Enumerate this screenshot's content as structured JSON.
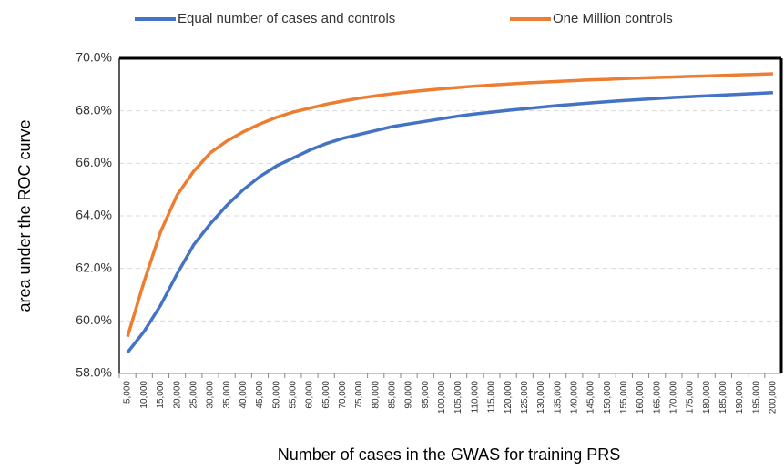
{
  "chart_data": {
    "type": "line",
    "x_label": "Number of cases in the GWAS for training PRS",
    "y_label": "area under the ROC curve",
    "categories": [
      "5,000",
      "10,000",
      "15,000",
      "20,000",
      "25,000",
      "30,000",
      "35,000",
      "40,000",
      "45,000",
      "50,000",
      "55,000",
      "60,000",
      "65,000",
      "70,000",
      "75,000",
      "80,000",
      "85,000",
      "90,000",
      "95,000",
      "100,000",
      "105,000",
      "110,000",
      "115,000",
      "120,000",
      "125,000",
      "130,000",
      "135,000",
      "140,000",
      "145,000",
      "150,000",
      "155,000",
      "160,000",
      "165,000",
      "170,000",
      "175,000",
      "180,000",
      "185,000",
      "190,000",
      "195,000",
      "200,000"
    ],
    "series": [
      {
        "name": "Equal number of cases and controls",
        "color": "#4472c4",
        "values": [
          58.8,
          59.6,
          60.6,
          61.8,
          62.9,
          63.7,
          64.4,
          65.0,
          65.5,
          65.9,
          66.2,
          66.5,
          66.75,
          66.95,
          67.1,
          67.25,
          67.4,
          67.5,
          67.6,
          67.7,
          67.8,
          67.88,
          67.95,
          68.02,
          68.08,
          68.14,
          68.2,
          68.25,
          68.3,
          68.35,
          68.39,
          68.43,
          68.47,
          68.51,
          68.54,
          68.57,
          68.6,
          68.63,
          68.66,
          68.69
        ]
      },
      {
        "name": "One Million controls",
        "color": "#ed7d31",
        "values": [
          59.4,
          61.5,
          63.4,
          64.8,
          65.7,
          66.4,
          66.85,
          67.2,
          67.5,
          67.75,
          67.95,
          68.1,
          68.25,
          68.37,
          68.48,
          68.57,
          68.65,
          68.72,
          68.78,
          68.84,
          68.89,
          68.94,
          68.98,
          69.02,
          69.06,
          69.09,
          69.12,
          69.15,
          69.18,
          69.2,
          69.23,
          69.25,
          69.27,
          69.29,
          69.31,
          69.33,
          69.35,
          69.37,
          69.39,
          69.41
        ]
      }
    ],
    "ylim": [
      58,
      70
    ],
    "yticks": [
      {
        "value": 58,
        "label": "58.0%"
      },
      {
        "value": 60,
        "label": "60.0%"
      },
      {
        "value": 62,
        "label": "62.0%"
      },
      {
        "value": 64,
        "label": "64.0%"
      },
      {
        "value": 66,
        "label": "66.0%"
      },
      {
        "value": 68,
        "label": "68.0%"
      },
      {
        "value": 70,
        "label": "70.0%"
      }
    ],
    "grid": true,
    "legend": "top"
  }
}
